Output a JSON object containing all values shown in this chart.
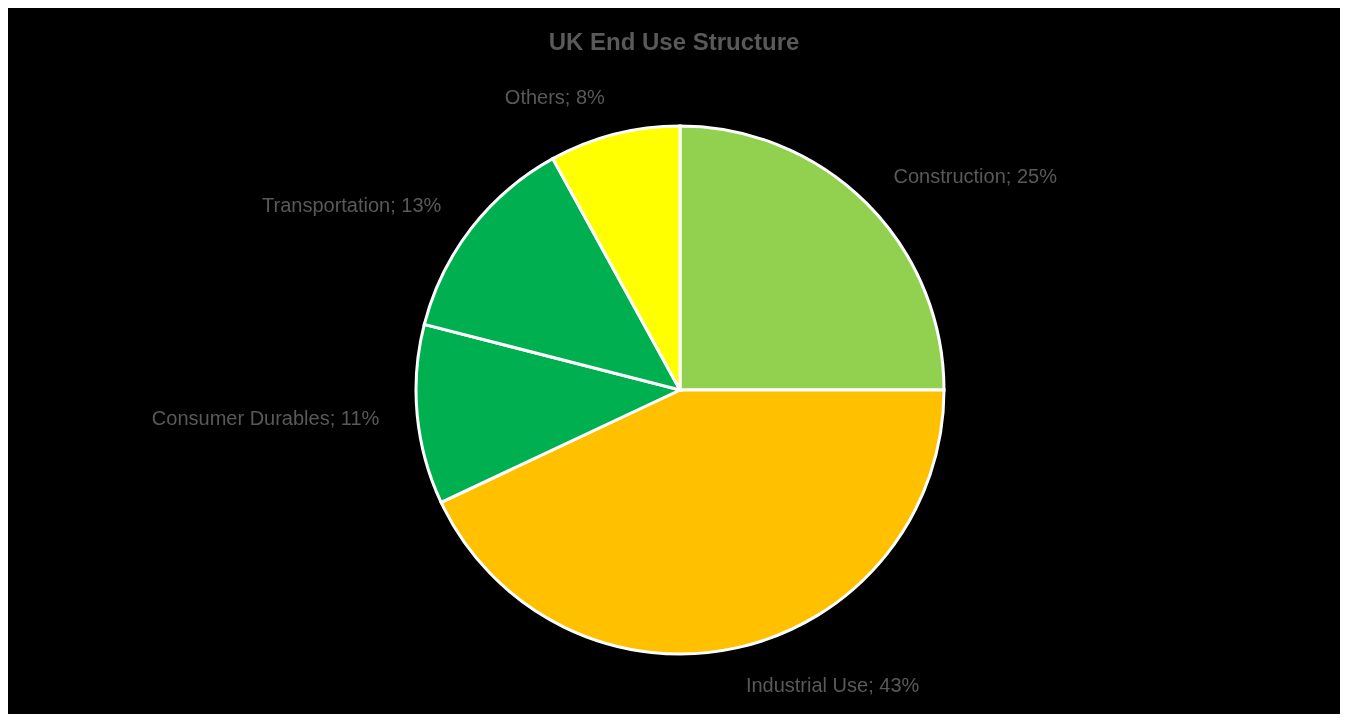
{
  "chart_data": {
    "type": "pie",
    "title": "UK End Use Structure",
    "categories": [
      "Construction",
      "Industrial Use",
      "Consumer Durables",
      "Transportation",
      "Others"
    ],
    "values": [
      25,
      43,
      11,
      13,
      8
    ],
    "colors": [
      "#92d050",
      "#ffc000",
      "#00b050",
      "#00b050",
      "#ffff00"
    ],
    "value_labels": [
      "25%",
      "43%",
      "11%",
      "13%",
      "8%"
    ]
  }
}
